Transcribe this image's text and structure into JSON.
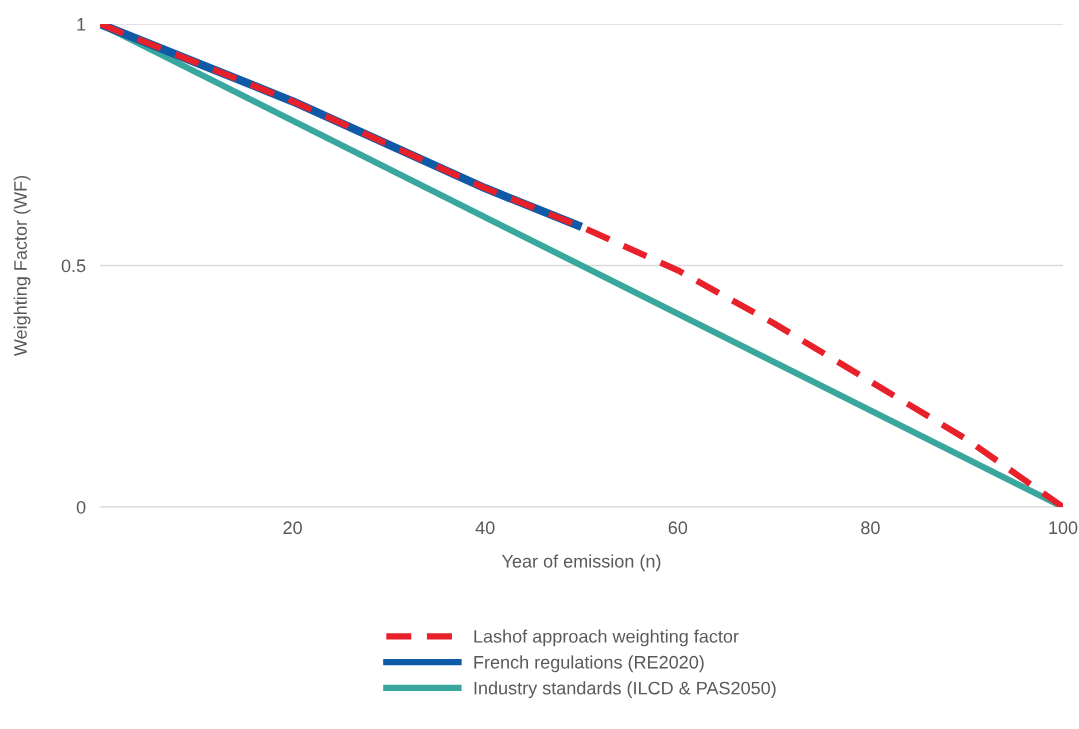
{
  "chart_data": {
    "type": "line",
    "xlabel": "Year of emission (n)",
    "ylabel": "Weighting Factor (WF)",
    "xlim": [
      0,
      100
    ],
    "xticks": [
      20,
      40,
      60,
      80,
      100
    ],
    "ylim": [
      0,
      1
    ],
    "yticks": [
      0,
      0.5,
      1
    ],
    "grid": "y",
    "legend": "bottom",
    "series": [
      {
        "name": "Lashof approach weighting factor",
        "color": "#e8202a",
        "line_style": "dashed",
        "x": [
          0,
          10,
          20,
          30,
          40,
          50,
          60,
          70,
          80,
          90,
          100
        ],
        "values": [
          1,
          0.92,
          0.84,
          0.75,
          0.66,
          0.58,
          0.49,
          0.38,
          0.26,
          0.14,
          0
        ]
      },
      {
        "name": "French regulations (RE2020)",
        "color": "#0e5aa7",
        "line_style": "solid",
        "x": [
          0,
          10,
          20,
          30,
          40,
          50
        ],
        "values": [
          1,
          0.92,
          0.84,
          0.75,
          0.66,
          0.58
        ]
      },
      {
        "name": "Industry standards (ILCD & PAS2050)",
        "color": "#3aa79f",
        "line_style": "solid",
        "x": [
          0,
          100
        ],
        "values": [
          1,
          0
        ]
      }
    ]
  }
}
